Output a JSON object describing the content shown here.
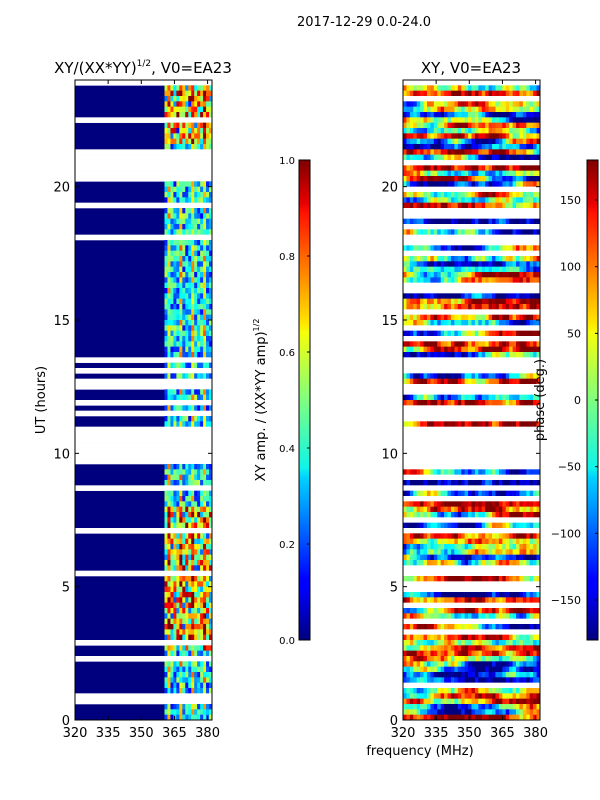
{
  "figure_title": "2017-12-29 0.0-24.0",
  "shared_xlabel": "frequency (MHz)",
  "chart_data": [
    {
      "type": "heatmap",
      "title_main": "XY/(XX*YY)",
      "title_sup": "1/2",
      "title_tail": ", V0=EA23",
      "xlabel": "",
      "ylabel": "UT (hours)",
      "xlim": [
        320,
        382
      ],
      "ylim": [
        0,
        24
      ],
      "xticks": [
        320,
        335,
        350,
        365,
        380
      ],
      "yticks": [
        0,
        5,
        10,
        15,
        20
      ],
      "data_region_x": [
        360.5,
        382
      ],
      "colorbar": {
        "label_main": "XY amp. / (XX*YY amp)",
        "label_sup": "1/2",
        "vmin": 0.0,
        "vmax": 1.0,
        "ticks": [
          0.0,
          0.2,
          0.4,
          0.6,
          0.8,
          1.0
        ],
        "tick_labels": [
          "0.0",
          "0.2",
          "0.4",
          "0.6",
          "0.8",
          "1.0"
        ]
      }
    },
    {
      "type": "heatmap",
      "title_main": "XY, V0=EA23",
      "title_sup": "",
      "title_tail": "",
      "xlabel": "",
      "ylabel": "",
      "xlim": [
        320,
        382
      ],
      "ylim": [
        0,
        24
      ],
      "xticks": [
        320,
        335,
        350,
        365,
        380
      ],
      "yticks": [
        0,
        5,
        10,
        15,
        20
      ],
      "data_region_x": [
        320,
        382
      ],
      "colorbar": {
        "label_main": "phase (deg.)",
        "label_sup": "",
        "vmin": -180,
        "vmax": 180,
        "ticks": [
          -150,
          -100,
          -50,
          0,
          50,
          100,
          150
        ],
        "tick_labels": [
          "−150",
          "−100",
          "−50",
          "0",
          "50",
          "100",
          "150"
        ]
      }
    }
  ]
}
